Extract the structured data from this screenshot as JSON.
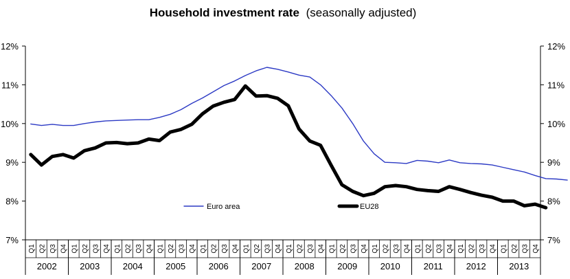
{
  "chart_data": {
    "type": "line",
    "title": "Household investment rate",
    "subtitle": "(seasonally adjusted)",
    "xlabel": "",
    "ylabel": "",
    "ylim": [
      7,
      12
    ],
    "y_ticks": [
      "7%",
      "8%",
      "9%",
      "10%",
      "11%",
      "12%"
    ],
    "y_tick_values": [
      7,
      8,
      9,
      10,
      11,
      12
    ],
    "quarters": [
      "Q1",
      "Q2",
      "Q3",
      "Q4"
    ],
    "years": [
      "2002",
      "2003",
      "2004",
      "2005",
      "2006",
      "2007",
      "2008",
      "2009",
      "2010",
      "2011",
      "2012",
      "2013"
    ],
    "legend": [
      {
        "name": "Euro area",
        "color": "#2b39c4"
      },
      {
        "name": "EU28",
        "color": "#000000"
      }
    ],
    "series": [
      {
        "name": "Euro area",
        "color": "#2b39c4",
        "values": [
          9.99,
          9.95,
          9.98,
          9.95,
          9.95,
          10.0,
          10.04,
          10.07,
          10.08,
          10.09,
          10.1,
          10.1,
          10.16,
          10.24,
          10.36,
          10.52,
          10.66,
          10.82,
          10.98,
          11.1,
          11.24,
          11.36,
          11.45,
          11.4,
          11.33,
          11.25,
          11.2,
          11.0,
          10.72,
          10.4,
          10.0,
          9.55,
          9.22,
          9.0,
          8.99,
          8.97,
          9.05,
          9.03,
          8.99,
          9.06,
          8.99,
          8.97,
          8.96,
          8.93,
          8.87,
          8.81,
          8.75,
          8.66,
          8.58,
          8.57,
          8.54
        ]
      },
      {
        "name": "EU28",
        "color": "#000000",
        "values": [
          9.2,
          8.93,
          9.15,
          9.2,
          9.11,
          9.3,
          9.37,
          9.5,
          9.51,
          9.48,
          9.5,
          9.6,
          9.56,
          9.78,
          9.85,
          9.98,
          10.25,
          10.45,
          10.55,
          10.62,
          10.97,
          10.71,
          10.72,
          10.65,
          10.46,
          9.86,
          9.55,
          9.44,
          8.92,
          8.42,
          8.25,
          8.14,
          8.2,
          8.37,
          8.4,
          8.37,
          8.3,
          8.27,
          8.25,
          8.37,
          8.3,
          8.22,
          8.15,
          8.1,
          8.0,
          8.0,
          7.88,
          7.92,
          7.83
        ]
      }
    ]
  }
}
